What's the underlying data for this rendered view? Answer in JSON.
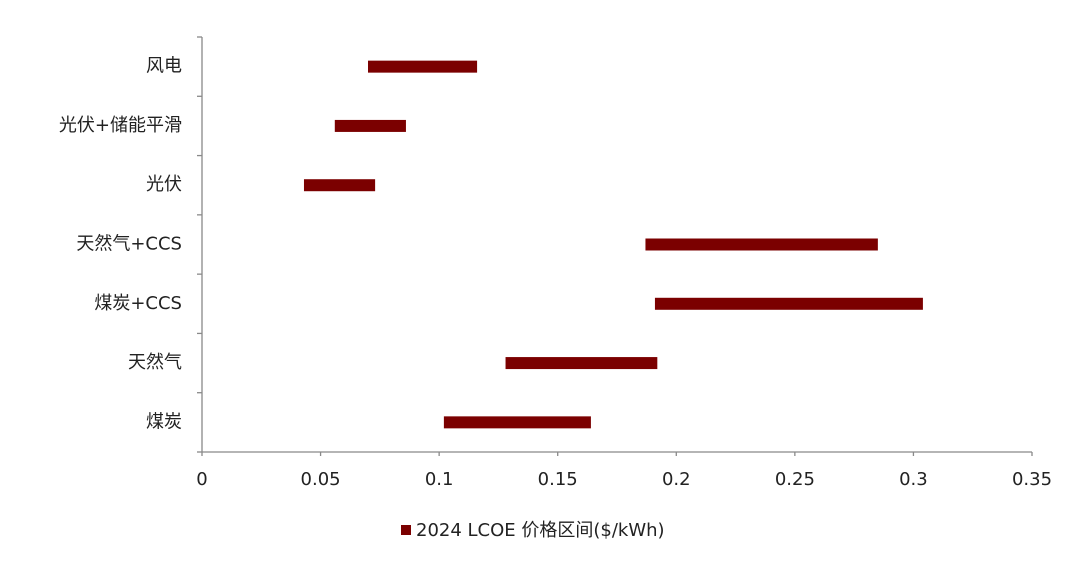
{
  "chart_data": {
    "type": "floating-bar",
    "categories": [
      "风电",
      "光伏+储能平滑",
      "光伏",
      "天然气+CCS",
      "煤炭+CCS",
      "天然气",
      "煤炭"
    ],
    "series": [
      {
        "name": "2024 LCOE 价格区间($/kWh)",
        "color": "#7b0000",
        "values": [
          [
            0.07,
            0.116
          ],
          [
            0.056,
            0.086
          ],
          [
            0.043,
            0.073
          ],
          [
            0.187,
            0.285
          ],
          [
            0.191,
            0.304
          ],
          [
            0.128,
            0.192
          ],
          [
            0.102,
            0.164
          ]
        ]
      }
    ],
    "xlim": [
      0,
      0.35
    ],
    "xticks": [
      0,
      0.05,
      0.1,
      0.15,
      0.2,
      0.25,
      0.3,
      0.35
    ],
    "legend": "bottom"
  }
}
